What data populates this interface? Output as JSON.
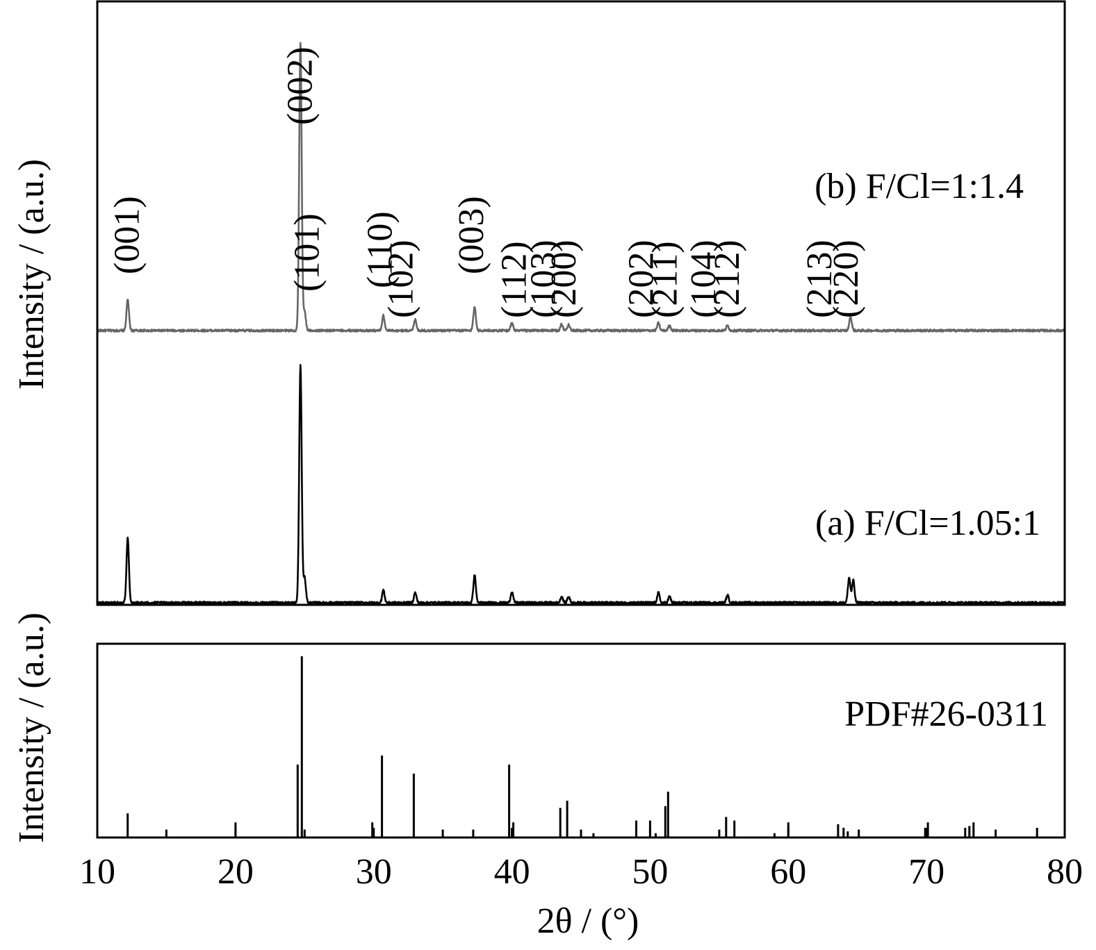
{
  "chart_data": [
    {
      "type": "line",
      "panel": "top",
      "ylabel": "Intensity / (a.u.)",
      "xlim": [
        10,
        80
      ],
      "series": [
        {
          "name": "(b) F/Cl=1:1.4",
          "color": "#666666",
          "peaks": [
            {
              "x": 12.2,
              "h": 0.25
            },
            {
              "x": 24.7,
              "h": 2.3
            },
            {
              "x": 25.0,
              "h": 0.15
            },
            {
              "x": 30.7,
              "h": 0.12
            },
            {
              "x": 33.0,
              "h": 0.09
            },
            {
              "x": 37.3,
              "h": 0.19
            },
            {
              "x": 40.0,
              "h": 0.06
            },
            {
              "x": 43.6,
              "h": 0.05
            },
            {
              "x": 44.1,
              "h": 0.05
            },
            {
              "x": 50.6,
              "h": 0.06
            },
            {
              "x": 51.4,
              "h": 0.04
            },
            {
              "x": 55.6,
              "h": 0.04
            },
            {
              "x": 64.5,
              "h": 0.11
            }
          ]
        },
        {
          "name": "(a) F/Cl=1.05:1",
          "color": "#000000",
          "peaks": [
            {
              "x": 12.2,
              "h": 0.52
            },
            {
              "x": 24.7,
              "h": 1.9
            },
            {
              "x": 25.0,
              "h": 0.2
            },
            {
              "x": 30.7,
              "h": 0.1
            },
            {
              "x": 33.0,
              "h": 0.08
            },
            {
              "x": 37.3,
              "h": 0.22
            },
            {
              "x": 40.0,
              "h": 0.09
            },
            {
              "x": 43.6,
              "h": 0.05
            },
            {
              "x": 44.1,
              "h": 0.05
            },
            {
              "x": 50.6,
              "h": 0.08
            },
            {
              "x": 51.4,
              "h": 0.05
            },
            {
              "x": 55.6,
              "h": 0.06
            },
            {
              "x": 64.4,
              "h": 0.2
            },
            {
              "x": 64.7,
              "h": 0.18
            }
          ]
        }
      ],
      "annotations": [
        {
          "text": "(001)",
          "x": 12.2
        },
        {
          "text": "(002)",
          "x": 24.7
        },
        {
          "text": "(101)",
          "x": 25.2
        },
        {
          "text": "(110)",
          "x": 30.5
        },
        {
          "text": "(102)",
          "x": 32.0
        },
        {
          "text": "(003)",
          "x": 37.1
        },
        {
          "text": "(112)",
          "x": 40.2
        },
        {
          "text": "(103)",
          "x": 42.3
        },
        {
          "text": "(200)",
          "x": 43.8
        },
        {
          "text": "(202)",
          "x": 49.4
        },
        {
          "text": "(211)",
          "x": 51.1
        },
        {
          "text": "(104)",
          "x": 53.9
        },
        {
          "text": "(212)",
          "x": 55.6
        },
        {
          "text": "(213)",
          "x": 62.3
        },
        {
          "text": "(220)",
          "x": 64.2
        }
      ]
    },
    {
      "type": "bar",
      "panel": "bottom",
      "label": "PDF#26-0311",
      "ylabel": "Intensity / (a.u.)",
      "xlabel": "2θ / (°)",
      "xlim": [
        10,
        80
      ],
      "xticks": [
        10,
        20,
        30,
        40,
        50,
        60,
        70,
        80
      ],
      "sticks": [
        {
          "x": 12.2,
          "v": 13
        },
        {
          "x": 15.0,
          "v": 4
        },
        {
          "x": 20.0,
          "v": 8
        },
        {
          "x": 24.5,
          "v": 40
        },
        {
          "x": 24.8,
          "v": 100
        },
        {
          "x": 25.0,
          "v": 4
        },
        {
          "x": 29.9,
          "v": 8
        },
        {
          "x": 30.6,
          "v": 45
        },
        {
          "x": 32.9,
          "v": 35
        },
        {
          "x": 35.0,
          "v": 4
        },
        {
          "x": 37.2,
          "v": 4
        },
        {
          "x": 39.8,
          "v": 40
        },
        {
          "x": 40.1,
          "v": 8
        },
        {
          "x": 43.5,
          "v": 16
        },
        {
          "x": 44.0,
          "v": 20
        },
        {
          "x": 45.0,
          "v": 4
        },
        {
          "x": 45.9,
          "v": 2
        },
        {
          "x": 49.0,
          "v": 9
        },
        {
          "x": 50.0,
          "v": 9
        },
        {
          "x": 50.4,
          "v": 2
        },
        {
          "x": 51.1,
          "v": 17
        },
        {
          "x": 51.3,
          "v": 25
        },
        {
          "x": 55.0,
          "v": 4
        },
        {
          "x": 55.5,
          "v": 11
        },
        {
          "x": 56.1,
          "v": 9
        },
        {
          "x": 59.0,
          "v": 2
        },
        {
          "x": 60.0,
          "v": 8
        },
        {
          "x": 63.6,
          "v": 7
        },
        {
          "x": 64.0,
          "v": 5
        },
        {
          "x": 64.3,
          "v": 3
        },
        {
          "x": 65.1,
          "v": 4
        },
        {
          "x": 69.9,
          "v": 5
        },
        {
          "x": 70.1,
          "v": 8
        },
        {
          "x": 72.8,
          "v": 5
        },
        {
          "x": 73.1,
          "v": 6
        },
        {
          "x": 73.4,
          "v": 8
        },
        {
          "x": 75.0,
          "v": 4
        },
        {
          "x": 78.0,
          "v": 5
        }
      ]
    }
  ]
}
